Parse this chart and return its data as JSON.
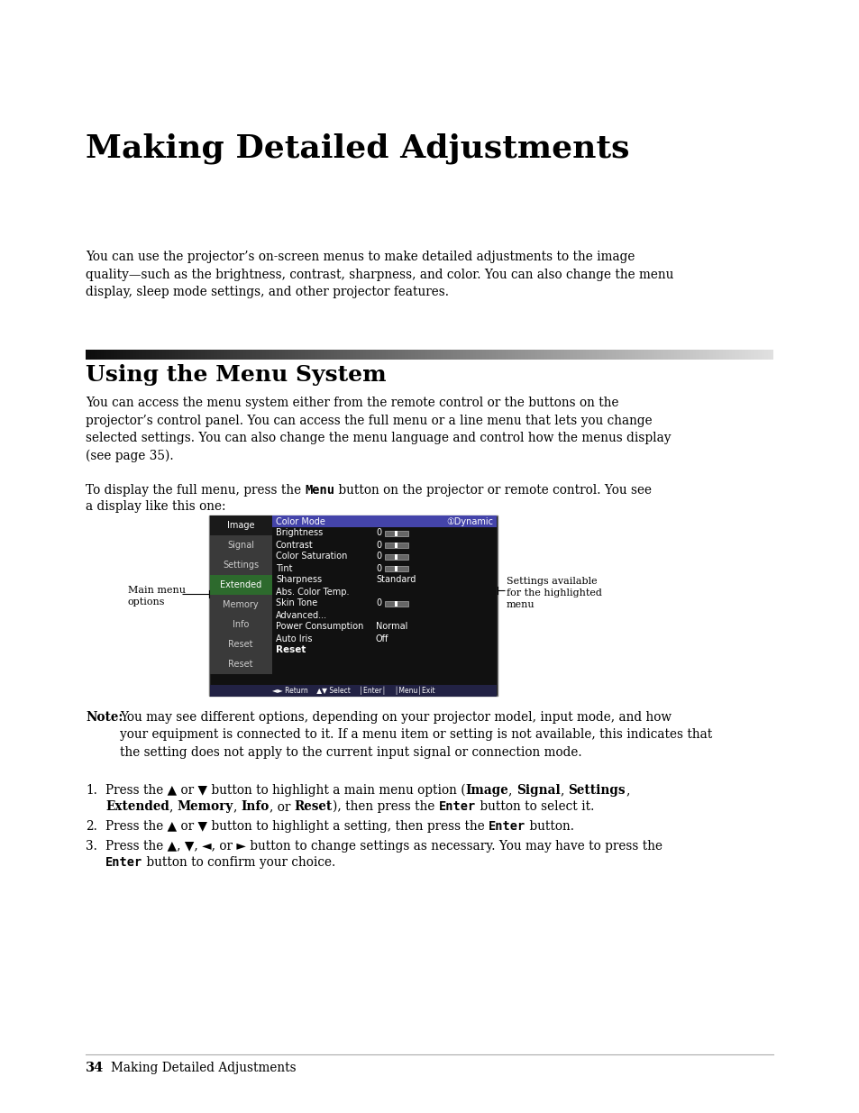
{
  "page_bg": "#ffffff",
  "title": "Making Detailed Adjustments",
  "section_title": "Using the Menu System",
  "intro_text": "You can use the projector’s on-screen menus to make detailed adjustments to the image\nquality—such as the brightness, contrast, sharpness, and color. You can also change the menu\ndisplay, sleep mode settings, and other projector features.",
  "section_body1": "You can access the menu system either from the remote control or the buttons on the\nprojector’s control panel. You can access the full menu or a line menu that lets you change\nselected settings. You can also change the menu language and control how the menus display\n(see page 35).",
  "footer_num": "34",
  "footer_text": "Making Detailed Adjustments",
  "menu_left_items": [
    "Image",
    "Signal",
    "Settings",
    "Extended",
    "Memory",
    "Info",
    "Reset"
  ],
  "menu_right_items": [
    {
      "label": "Color Mode",
      "value": "①Dynamic",
      "highlight": true,
      "bar": false
    },
    {
      "label": "Brightness",
      "value": "0",
      "bar": true
    },
    {
      "label": "Contrast",
      "value": "0",
      "bar": true
    },
    {
      "label": "Color Saturation",
      "value": "0",
      "bar": true
    },
    {
      "label": "Tint",
      "value": "0",
      "bar": true
    },
    {
      "label": "Sharpness",
      "value": "Standard",
      "bar": false
    },
    {
      "label": "Abs. Color Temp.",
      "value": "",
      "bar": false
    },
    {
      "label": "Skin Tone",
      "value": "0",
      "bar": true
    },
    {
      "label": "Advanced...",
      "value": "",
      "bar": false
    },
    {
      "label": "Power Consumption",
      "value": "Normal",
      "bar": false
    },
    {
      "label": "Auto Iris",
      "value": "Off",
      "bar": false
    },
    {
      "label": "Reset",
      "value": "",
      "bar": false,
      "reset_row": true
    }
  ],
  "left_highlight": "Image",
  "left_green": "Extended"
}
